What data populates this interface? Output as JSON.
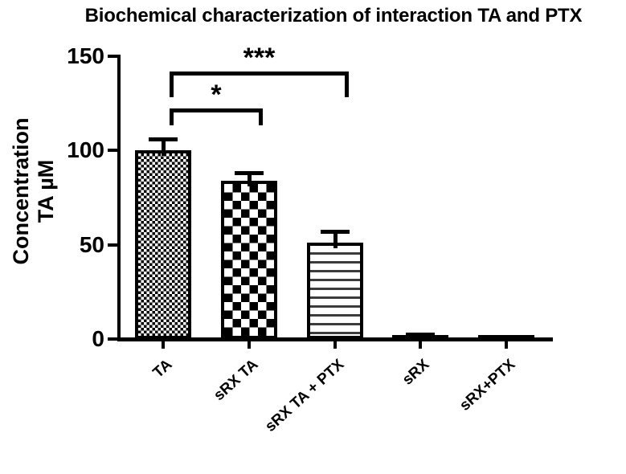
{
  "chart_data": {
    "type": "bar",
    "title": "Biochemical characterization of interaction TA and PTX",
    "ylabel": "Concentration TA µM",
    "ylabel_lines": [
      "Concentration",
      "TA µM"
    ],
    "xlabel": "",
    "categories": [
      "TA",
      "sRX TA",
      "sRX TA + PTX",
      "sRX",
      "sRX+PTX"
    ],
    "values": [
      100,
      84,
      51,
      2,
      2
    ],
    "errors_plus": [
      7,
      5,
      7,
      1.5,
      0
    ],
    "bar_patterns": [
      "fine-checker",
      "coarse-checker",
      "horizontal-lines",
      "solid",
      "solid"
    ],
    "ylim": [
      0,
      150
    ],
    "yticks": [
      0,
      50,
      100,
      150
    ],
    "grid": false,
    "legend": "none",
    "bar_color": "#000000",
    "background_color": "#ffffff",
    "significance": [
      {
        "from": "TA",
        "to": "sRX TA",
        "from_index": 0,
        "to_index": 1,
        "label": "*"
      },
      {
        "from": "TA",
        "to": "sRX TA + PTX",
        "from_index": 0,
        "to_index": 2,
        "label": "***"
      }
    ]
  }
}
